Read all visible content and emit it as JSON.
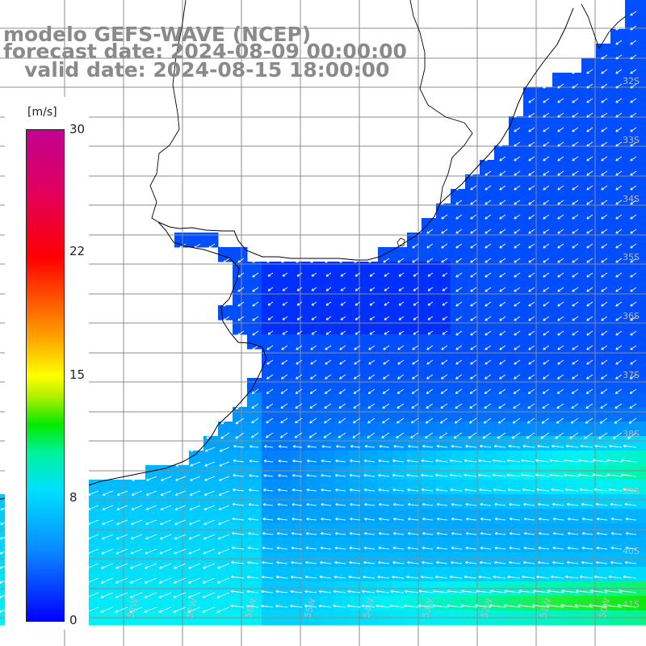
{
  "title": {
    "line1": "modelo GEFS-WAVE (NCEP)",
    "line2": "forecast date: 2024-08-09 00:00:00",
    "line3": "   valid date: 2024-08-15 18:00:00"
  },
  "colorbar": {
    "unit": "[m/s]",
    "min": 0,
    "max": 30,
    "ticks": [
      "30",
      "22",
      "15",
      "8",
      "0"
    ],
    "tick_values": [
      30,
      22,
      15,
      8,
      0
    ]
  },
  "map": {
    "variable": "wind speed",
    "units": "m/s",
    "lat_labels": [
      "32S",
      "33S",
      "34S",
      "35S",
      "36S",
      "37S",
      "38S",
      "39S",
      "40S",
      "41S"
    ],
    "lon_labels": [
      "58W",
      "57W",
      "56W",
      "55W",
      "54W",
      "53W",
      "52W",
      "51W",
      "50W"
    ],
    "lat_range": [
      -41,
      -31
    ],
    "lon_range": [
      -60,
      -49.5
    ],
    "arrow_direction": "westward (easterly/northeasterly wind)",
    "land_color": "#ffffff",
    "grid_color": "#808080",
    "coast_color": "#000000"
  }
}
